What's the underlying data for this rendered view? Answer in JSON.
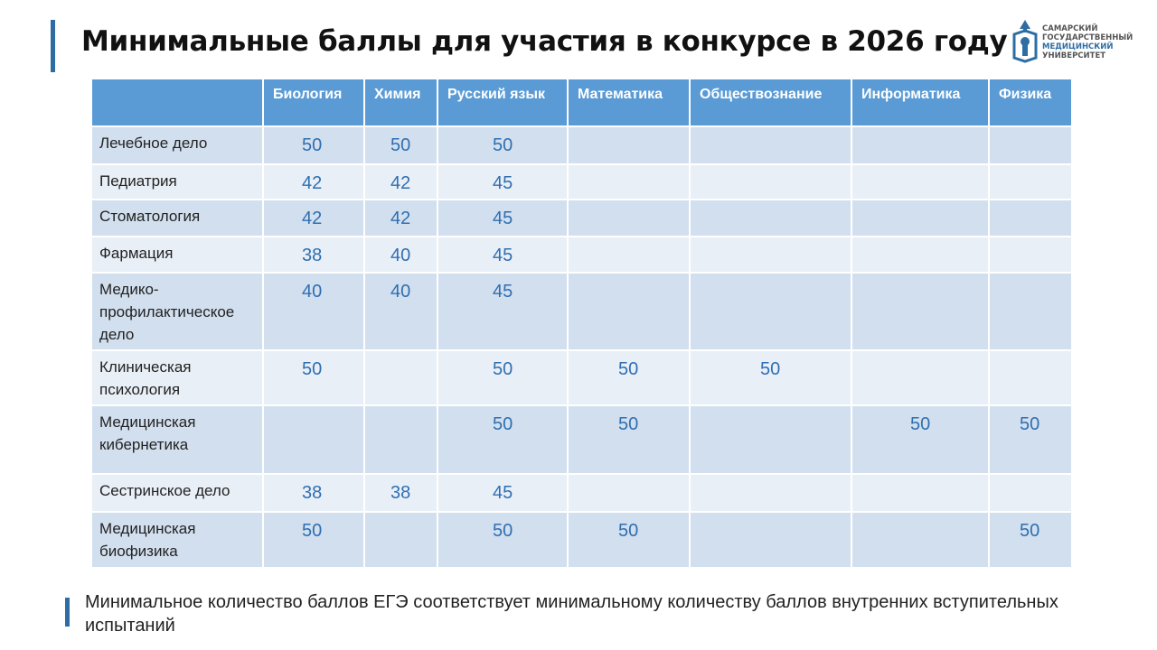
{
  "title": "Минимальные баллы для участия в конкурсе в 2026 году",
  "logo": {
    "lines": [
      "САМАРСКИЙ",
      "ГОСУДАРСТВЕННЫЙ",
      "МЕДИЦИНСКИЙ",
      "УНИВЕРСИТЕТ"
    ],
    "icon": "university-emblem-icon",
    "accent_color": "#2e6da4"
  },
  "table": {
    "headers": [
      "",
      "Биология",
      "Химия",
      "Русский язык",
      "Математика",
      "Обществознание",
      "Информатика",
      "Физика"
    ],
    "rows": [
      {
        "name": "Лечебное  дело",
        "values": [
          "50",
          "50",
          "50",
          "",
          "",
          "",
          ""
        ]
      },
      {
        "name": "Педиатрия",
        "values": [
          "42",
          "42",
          "45",
          "",
          "",
          "",
          ""
        ]
      },
      {
        "name": "Стоматология",
        "values": [
          "42",
          "42",
          "45",
          "",
          "",
          "",
          ""
        ]
      },
      {
        "name": "Фармация",
        "values": [
          "38",
          "40",
          "45",
          "",
          "",
          "",
          ""
        ]
      },
      {
        "name": "Медико-профилактическое дело",
        "values": [
          "40",
          "40",
          "45",
          "",
          "",
          "",
          ""
        ]
      },
      {
        "name": "Клиническая психология",
        "values": [
          "50",
          "",
          "50",
          "50",
          "50",
          "",
          ""
        ]
      },
      {
        "name": "Медицинская кибернетика",
        "values": [
          "",
          "",
          "50",
          "50",
          "",
          "50",
          "50"
        ]
      },
      {
        "name": "Сестринское  дело",
        "values": [
          "38",
          "38",
          "45",
          "",
          "",
          "",
          ""
        ]
      },
      {
        "name": "Медицинская биофизика",
        "values": [
          "50",
          "",
          "50",
          "50",
          "",
          "",
          "50"
        ]
      }
    ],
    "colors": {
      "header": "#5b9bd5",
      "row_dark": "#d2dfee",
      "row_light": "#e9eff7",
      "value_text": "#2f6fb2"
    }
  },
  "footer_note": "Минимальное количество баллов ЕГЭ соответствует минимальному количеству баллов внутренних вступительных испытаний"
}
